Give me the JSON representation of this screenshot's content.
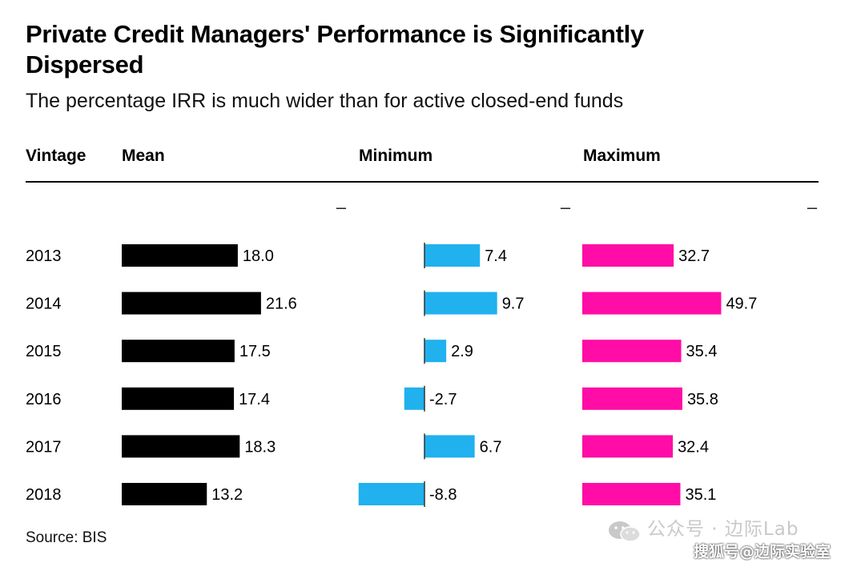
{
  "header": {
    "title": "Private Credit Managers' Performance is Significantly Dispersed",
    "subtitle": "The percentage IRR is much wider than for active closed-end funds",
    "source": "Source: BIS"
  },
  "columns": {
    "vintage": "Vintage",
    "mean": "Mean",
    "minimum": "Minimum",
    "maximum": "Maximum"
  },
  "watermark": {
    "line1": "公众号 · 边际Lab",
    "line2": "搜狐号@边际实验室"
  },
  "colors": {
    "mean": "#000000",
    "minimum": "#20b1ee",
    "maximum": "#ff0da6",
    "rule": "#000000"
  },
  "chart_data": {
    "type": "table",
    "title": "Private Credit Managers' Performance is Significantly Dispersed",
    "subtitle": "The percentage IRR is much wider than for active closed-end funds",
    "categories": [
      "2013",
      "2014",
      "2015",
      "2016",
      "2017",
      "2018"
    ],
    "series": [
      {
        "name": "Mean",
        "values": [
          18.0,
          21.6,
          17.5,
          17.4,
          18.3,
          13.2
        ]
      },
      {
        "name": "Minimum",
        "values": [
          7.4,
          9.7,
          2.9,
          -2.7,
          6.7,
          -8.8
        ]
      },
      {
        "name": "Maximum",
        "values": [
          32.7,
          49.7,
          35.4,
          35.8,
          32.4,
          35.1
        ]
      }
    ],
    "value_labels": {
      "Mean": [
        "18.0",
        "21.6",
        "17.5",
        "17.4",
        "18.3",
        "13.2"
      ],
      "Minimum": [
        "7.4",
        "9.7",
        "2.9",
        "-2.7",
        "6.7",
        "-8.8"
      ],
      "Maximum": [
        "32.7",
        "49.7",
        "35.4",
        "35.8",
        "32.4",
        "35.1"
      ]
    },
    "axis_markers": [
      "–",
      "–",
      "–"
    ],
    "source": "Source: BIS"
  }
}
